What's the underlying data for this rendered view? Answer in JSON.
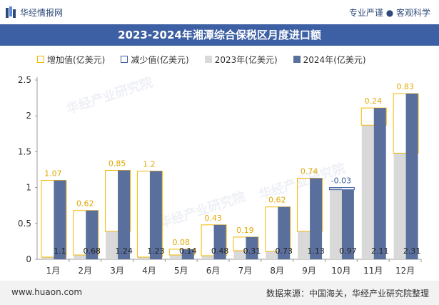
{
  "header": {
    "brand": "华经情报网",
    "tagline": "专业严谨 ● 客观科学",
    "title": "2023-2024年湘潭综合保税区月度进口额"
  },
  "legend": {
    "increase": "增加值(亿美元)",
    "decrease": "减少值(亿美元)",
    "y2023": "2023年(亿美元)",
    "y2024": "2024年(亿美元)"
  },
  "watermark": "华经产业研究院",
  "footer": {
    "website": "www.huaon.com",
    "source": "数据来源：中国海关，华经产业研究院整理"
  },
  "colors": {
    "increase": "#f5b800",
    "decrease": "#3d5fa3",
    "y2023": "#d9d9d9",
    "y2024": "#5b6f9c",
    "titlebar": "#3d5fa3"
  },
  "chart_data": {
    "type": "bar",
    "categories": [
      "1月",
      "2月",
      "3月",
      "4月",
      "5月",
      "6月",
      "7月",
      "8月",
      "9月",
      "10月",
      "11月",
      "12月"
    ],
    "ylim": [
      0,
      2.5
    ],
    "yticks": [
      "0",
      "0.5",
      "1",
      "1.5",
      "2",
      "2.5"
    ],
    "series": [
      {
        "name": "2023年(亿美元)",
        "values": [
          0.03,
          0.06,
          0.39,
          0.03,
          0.06,
          0.05,
          0.12,
          0.11,
          0.39,
          1.0,
          1.87,
          1.48
        ]
      },
      {
        "name": "2024年(亿美元)",
        "values": [
          1.1,
          0.68,
          1.24,
          1.23,
          0.14,
          0.48,
          0.31,
          0.73,
          1.13,
          0.97,
          2.11,
          2.31
        ]
      },
      {
        "name": "增加值(亿美元)",
        "values": [
          1.07,
          0.62,
          0.85,
          1.2,
          0.08,
          0.43,
          0.19,
          0.62,
          0.74,
          null,
          0.24,
          0.83
        ]
      },
      {
        "name": "减少值(亿美元)",
        "values": [
          null,
          null,
          null,
          null,
          null,
          null,
          null,
          null,
          null,
          -0.03,
          null,
          null
        ]
      }
    ],
    "change_labels": [
      "1.07",
      "0.62",
      "0.85",
      "1.2",
      "0.08",
      "0.43",
      "0.19",
      "0.62",
      "0.74",
      "-0.03",
      "0.24",
      "0.83"
    ],
    "value_labels_2024": [
      "1.1",
      "0.68",
      "1.24",
      "1.23",
      "0.14",
      "0.48",
      "0.31",
      "0.73",
      "1.13",
      "0.97",
      "2.11",
      "2.31"
    ],
    "grid": false,
    "legend_position": "top-left"
  }
}
